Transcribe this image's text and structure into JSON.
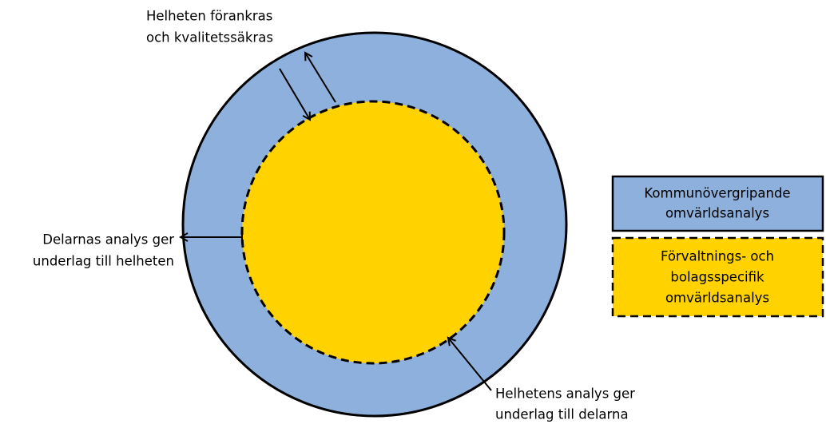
{
  "annotations": {
    "top": [
      "Helheten förankras",
      "och kvalitetssäkras"
    ],
    "left": [
      "Delarnas analys ger",
      "underlag till helheten"
    ],
    "bottom": [
      "Helhetens analys ger",
      "underlag till delarna"
    ]
  },
  "legend": [
    {
      "lines": [
        "Kommunövergripande",
        "omvärldsanalys"
      ]
    },
    {
      "lines": [
        "Förvaltnings- och",
        "bolagsspecifik",
        "omvärldsanalys"
      ]
    }
  ]
}
